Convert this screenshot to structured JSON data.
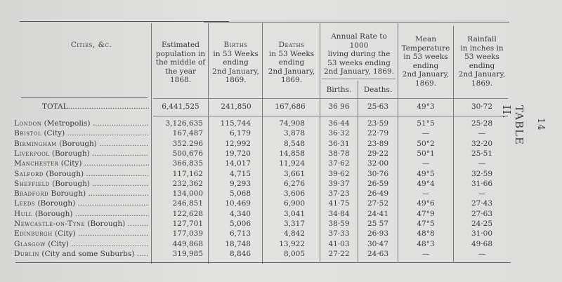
{
  "page_number": "14",
  "table_label": "TABLE II.",
  "headers": {
    "cities": "Cities, &c.",
    "population": [
      "Estimated",
      "population in",
      "the middle of",
      "the year",
      "1868."
    ],
    "births": [
      "Births",
      "in 53 Weeks",
      "ending",
      "2nd January,",
      "1869."
    ],
    "deaths": [
      "Deaths",
      "in 53 Weeks",
      "ending",
      "2nd January,",
      "1869."
    ],
    "annual_rate": [
      "Annual Rate to",
      "1000",
      "living during the",
      "53 weeks ending",
      "2nd January, 1869."
    ],
    "rate_births": "Births.",
    "rate_deaths": "Deaths.",
    "temperature": [
      "Mean",
      "Temperature",
      "in 53 weeks",
      "ending",
      "2nd January,",
      "1869."
    ],
    "rainfall": [
      "Rainfall",
      "in inches in",
      "53 weeks",
      "ending",
      "2nd January,",
      "1869."
    ]
  },
  "total": {
    "label": "TOTAL",
    "population": "6,441,525",
    "births": "241,850",
    "deaths": "167,686",
    "rate_births": "36 96",
    "rate_deaths": "25·63",
    "temperature": "49°3",
    "rainfall": "30·72"
  },
  "rows": [
    {
      "city": "London",
      "qualifier": "(Metropolis)",
      "population": "3,126,635",
      "births": "115,744",
      "deaths": "74,908",
      "rate_births": "36·44",
      "rate_deaths": "23·59",
      "temperature": "51°5",
      "rainfall": "25·28"
    },
    {
      "city": "Bristol",
      "qualifier": "(City)",
      "population": "167,487",
      "births": "6,179",
      "deaths": "3,878",
      "rate_births": "36·32",
      "rate_deaths": "22·79",
      "temperature": "—",
      "rainfall": "—"
    },
    {
      "city": "Birmingham",
      "qualifier": "(Borough)",
      "population": "352.296",
      "births": "12,992",
      "deaths": "8,548",
      "rate_births": "36·31",
      "rate_deaths": "23·89",
      "temperature": "50°2",
      "rainfall": "32·20"
    },
    {
      "city": "Liverpool",
      "qualifier": "(Borough)",
      "population": "500,676",
      "births": "19,720",
      "deaths": "14,858",
      "rate_births": "38·78",
      "rate_deaths": "29·22",
      "temperature": "50°1",
      "rainfall": "25·51"
    },
    {
      "city": "Manchester",
      "qualifier": "(City)",
      "population": "366,835",
      "births": "14,017",
      "deaths": "11,924",
      "rate_births": "37·62",
      "rate_deaths": "32·00",
      "temperature": "—",
      "rainfall": "—"
    },
    {
      "city": "Salford",
      "qualifier": "(Borough)",
      "population": "117,162",
      "births": "4,715",
      "deaths": "3,661",
      "rate_births": "39·62",
      "rate_deaths": "30·76",
      "temperature": "49°5",
      "rainfall": "32·59"
    },
    {
      "city": "Sheffield",
      "qualifier": "(Borough)",
      "population": "232,362",
      "births": "9,293",
      "deaths": "6,276",
      "rate_births": "39·37",
      "rate_deaths": "26·59",
      "temperature": "49°4",
      "rainfall": "31·66"
    },
    {
      "city": "Bradford",
      "qualifier": "Borough)",
      "population": "134,000",
      "births": "5,068",
      "deaths": "3,606",
      "rate_births": "37·23",
      "rate_deaths": "26·49",
      "temperature": "—",
      "rainfall": "—"
    },
    {
      "city": "Leeds",
      "qualifier": "(Borough)",
      "population": "246,851",
      "births": "10,469",
      "deaths": "6,900",
      "rate_births": "41·75",
      "rate_deaths": "27·52",
      "temperature": "49°6",
      "rainfall": "27·43"
    },
    {
      "city": "Hull",
      "qualifier": "(Borough)",
      "population": "122,628",
      "births": "4,340",
      "deaths": "3,041",
      "rate_births": "34·84",
      "rate_deaths": "24·41",
      "temperature": "47°9",
      "rainfall": "27·63"
    },
    {
      "city": "Newcastle-on-Tyne",
      "qualifier": "(Borough)",
      "population": "127,701",
      "births": "5,006",
      "deaths": "3,317",
      "rate_births": "38·59",
      "rate_deaths": "25 57",
      "temperature": "47°5",
      "rainfall": "24·25"
    },
    {
      "city": "Edinburgh",
      "qualifier": "(City)",
      "population": "177,039",
      "births": "6,713",
      "deaths": "4,842",
      "rate_births": "37·33",
      "rate_deaths": "26·93",
      "temperature": "48°8",
      "rainfall": "31·00"
    },
    {
      "city": "Glasgow",
      "qualifier": "(City)",
      "population": "449,868",
      "births": "18,748",
      "deaths": "13,922",
      "rate_births": "41·03",
      "rate_deaths": "30·47",
      "temperature": "48°3",
      "rainfall": "49·68"
    },
    {
      "city": "Dublin",
      "qualifier": "(City and some Suburbs)",
      "population": "319,985",
      "births": "8,846",
      "deaths": "8,005",
      "rate_births": "27·22",
      "rate_deaths": "24·63",
      "temperature": "—",
      "rainfall": "—"
    }
  ]
}
